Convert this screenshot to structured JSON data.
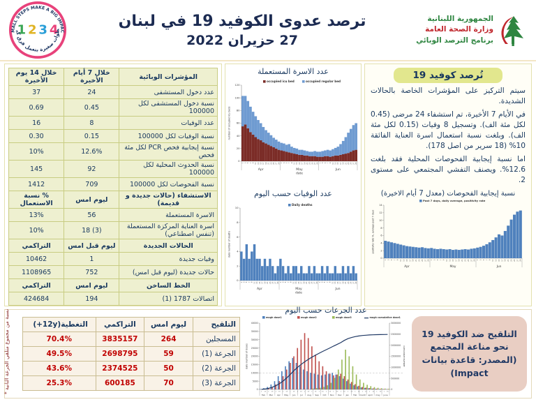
{
  "colors": {
    "accent_navy": "#17375e",
    "value_red": "#c00000",
    "badge_yellow": "#e2e78e",
    "badge_pink": "#e9cec3",
    "excel_blue": "#4f81bd",
    "icu_maroon": "#7b2c27",
    "regular_blue": "#6f9bd1",
    "dose2_red": "#c0504d",
    "dose3_green": "#9bbb59",
    "cumline_navy": "#1f3864"
  },
  "header": {
    "title_line1": "ترصد عدوى الكوفيد 19 في لبنان",
    "title_line2": "27 حزيران 2022",
    "ministry": {
      "line1": "الجمهورية اللبنانية",
      "line2": "وزارة الصحة العامة",
      "line3": "برنامج الترصد الوبائي"
    },
    "stamp": {
      "top": "SMALL STEPS MAKE A BIG IMPACT",
      "n1": "1",
      "n2": "2",
      "n3": "3",
      "n4": "4",
      "bottom": "خطوات صغيرة بتعمل فرق كبير"
    }
  },
  "indicators_table": {
    "col_headers": [
      "المؤشرات الوبائية",
      "خلال 7 أيام الأخيرة",
      "خلال 14 يوم الأخيرة"
    ],
    "rows": [
      {
        "t": "d",
        "a": "عدد دخول المستشفى",
        "b": "24",
        "c": "37"
      },
      {
        "t": "d",
        "a": "نسبة دخول المستشفى لكل 100000",
        "b": "0.45",
        "c": "0.69"
      },
      {
        "t": "d",
        "a": "عدد الوفيات",
        "b": "8",
        "c": "16"
      },
      {
        "t": "d",
        "a": "نسبة الوفيات لكل 100000",
        "b": "0.15",
        "c": "0.30"
      },
      {
        "t": "d",
        "a": "نسبة إيجابية فحص PCR لكل مئة فحص",
        "b": "12.6%",
        "c": "10%"
      },
      {
        "t": "d",
        "a": "نسبة الحدوث المحلية لكل 100000",
        "b": "92",
        "c": "145"
      },
      {
        "t": "d",
        "a": "نسبة الفحوصات لكل 100000",
        "b": "709",
        "c": "1412"
      },
      {
        "t": "h",
        "a": "الاستشفاء (حالات جديدة و قديمة)",
        "b": "ليوم امس",
        "c": "% نسبة الاستعمال"
      },
      {
        "t": "d",
        "a": "الاسرة المستعملة",
        "b": "56",
        "c": "13%"
      },
      {
        "t": "d",
        "a": "اسرة العناية المركزة المستعملة (تنفس اصطناعي)",
        "b": "18 (3)",
        "c": "10%"
      },
      {
        "t": "h",
        "a": "الحالات الجديدة",
        "b": "ليوم قبل امس",
        "c": "التراكمي"
      },
      {
        "t": "d",
        "a": "وفيات جديدة",
        "b": "1",
        "c": "10462"
      },
      {
        "t": "d",
        "a": "حالات جديدة (ليوم قبل امس)",
        "b": "752",
        "c": "1108965"
      },
      {
        "t": "h",
        "a": "الخط الساخن",
        "b": "ليوم امس",
        "c": "التراكمي"
      },
      {
        "t": "d",
        "a": "اتصالات 1787 (1)",
        "b": "194",
        "c": "424684"
      }
    ]
  },
  "surveillance": {
    "badge": "تُرصد كوفيد 19",
    "p1": "سيتم التركيز على المؤشرات الخاصة بالحالات الشديدة.",
    "p2": "في الأيام 7 الأخيرة، تم استشفاء 24 مرضى (0.45 لكل مئة الف). وتسجيل 8 وفيات (0.15 لكل مئة الف). وبلغت نسبة استعمال اسرة العناية الفائقة 10% (18 سرير من اصل 178).",
    "p3": "اما نسبة إيجابية الفحوصات المحلية فقد بلغت 12.6%. ويصنف التفشي المجتمعي على مستوى 2."
  },
  "vaccination_table": {
    "headers": [
      "التلقيح",
      "ليوم امس",
      "التراكمي"
    ],
    "header_coverage_ar": "التغطية",
    "header_coverage_en": "(+12y)",
    "rows": [
      {
        "label": "المسجلين",
        "yesterday": "264",
        "cumulative": "3835157",
        "coverage": "70.4%"
      },
      {
        "label": "الجرعة (1)",
        "yesterday": "59",
        "cumulative": "2698795",
        "coverage": "49.5%"
      },
      {
        "label": "الجرعة (2)",
        "yesterday": "50",
        "cumulative": "2374525",
        "coverage": "43.6%"
      },
      {
        "label": "الجرعة (3)",
        "yesterday": "70",
        "cumulative": "600185",
        "coverage": "25.3%"
      }
    ],
    "note": "* نسبة من مجموع متلقي الجرعة الثانية"
  },
  "vaccination_badge": {
    "text": "التلقيح ضد الكوفيد 19 نحو مناعة المجتمع",
    "source": "(المصدر: قاعدة بيانات Impact)"
  },
  "chart_data": [
    {
      "id": "beds",
      "type": "stacked-bar",
      "title": "عدد الاسرة المستعملة",
      "ylabel": "number of occupied icu beds",
      "xlabel": "date",
      "ylim": [
        0,
        120
      ],
      "yticks": [
        0,
        20,
        40,
        60,
        80,
        100,
        120
      ],
      "months": [
        "Apr",
        "May",
        "Jun"
      ],
      "x_tick_days": "odd days 1-29 of each month",
      "grid": false,
      "legend_position": "top-inside",
      "series": [
        {
          "name": "occupied icu bed",
          "color": "#7b2c27",
          "values": [
            55,
            58,
            52,
            46,
            42,
            38,
            35,
            33,
            30,
            28,
            26,
            24,
            22,
            20,
            18,
            17,
            16,
            15,
            14,
            13,
            12,
            11,
            10,
            10,
            9,
            9,
            8,
            8,
            8,
            7,
            7,
            7,
            8,
            8,
            7,
            8,
            9,
            9,
            10,
            11,
            12,
            13,
            15,
            17,
            18
          ]
        },
        {
          "name": "occupied regular bed",
          "color": "#6f9bd1",
          "values": [
            48,
            45,
            43,
            40,
            36,
            33,
            30,
            27,
            24,
            21,
            19,
            17,
            15,
            14,
            13,
            12,
            12,
            11,
            13,
            10,
            9,
            9,
            8,
            8,
            8,
            7,
            7,
            7,
            8,
            8,
            8,
            9,
            9,
            10,
            10,
            11,
            12,
            14,
            17,
            21,
            26,
            32,
            36,
            40,
            42
          ]
        }
      ]
    },
    {
      "id": "deaths",
      "type": "bar",
      "title": "عدد الوفيات حسب اليوم",
      "ylabel": "daily number of deaths",
      "xlabel": "date",
      "ylim": [
        0,
        10
      ],
      "yticks": [
        0,
        2,
        4,
        6,
        8,
        10
      ],
      "months": [
        "Apr",
        "May",
        "Jun"
      ],
      "x_tick_days": "odd days 1-29 of each month",
      "grid": false,
      "legend_position": "top-inside",
      "legend": [
        {
          "label": "Daily deaths",
          "color": "#4f81bd"
        }
      ],
      "values": [
        4,
        3,
        5,
        3,
        4,
        5,
        3,
        3,
        2,
        3,
        2,
        3,
        2,
        1,
        2,
        3,
        2,
        1,
        2,
        1,
        2,
        2,
        1,
        2,
        1,
        1,
        2,
        1,
        2,
        1,
        1,
        2,
        1,
        2,
        1,
        1,
        2,
        1,
        1,
        2,
        1,
        2,
        1,
        2,
        1
      ]
    },
    {
      "id": "positivity",
      "type": "bar",
      "title": "نسبة إيجابية الفحوصات (معدل 7 أيام الاخيرة)",
      "ylabel": "positivity rate %, average past 7 days",
      "xlabel": "",
      "ylim": [
        0,
        14
      ],
      "yticks": [
        0,
        2,
        4,
        6,
        8,
        10,
        12,
        14
      ],
      "months": [
        "Apr",
        "May",
        "Jun"
      ],
      "x_tick_days": "odd days 1-29 of each month",
      "grid": false,
      "legend_position": "top-inside",
      "legend": [
        {
          "label": "Past 7 days, daily average, positivity rate",
          "color": "#4f81bd"
        }
      ],
      "values": [
        4.6,
        4.4,
        4.2,
        4.0,
        3.8,
        3.6,
        3.4,
        3.2,
        3.1,
        3.0,
        2.9,
        2.8,
        2.9,
        2.7,
        2.6,
        2.7,
        2.5,
        2.4,
        2.5,
        2.4,
        2.3,
        2.4,
        2.2,
        2.3,
        2.2,
        2.3,
        2.4,
        2.3,
        2.5,
        2.6,
        2.8,
        3.0,
        3.3,
        3.7,
        4.2,
        4.8,
        5.5,
        6.3,
        6.0,
        7.2,
        8.6,
        10.2,
        11.5,
        12.3,
        12.6
      ]
    },
    {
      "id": "doses",
      "type": "grouped-bar-line",
      "title": "عدد الجرعات حسب اليوم",
      "ylabel": "daily number of doses",
      "ylabel_right": "cumulative number",
      "xlabel": "",
      "ylim": [
        0,
        40000
      ],
      "yticks": [
        0,
        5000,
        10000,
        15000,
        20000,
        25000,
        30000,
        35000,
        40000
      ],
      "ylim_right": [
        0,
        3000000
      ],
      "yticks_right": [
        0,
        500000,
        1000000,
        1500000,
        2000000,
        2500000,
        3000000
      ],
      "refline": 10000,
      "grid": false,
      "legend_position": "top",
      "months": [
        "Feb",
        "Mar",
        "Apr",
        "May",
        "Jun",
        "Jul",
        "Aug",
        "Sep",
        "Oct",
        "Nov",
        "Dec",
        "Jan",
        "Feb",
        "march",
        "april",
        "may",
        "june"
      ],
      "series": [
        {
          "name": "mogh dose1",
          "color": "#4f81bd",
          "values": [
            300,
            800,
            1500,
            3000,
            5000,
            8000,
            11000,
            14000,
            17000,
            19000,
            16000,
            14000,
            12000,
            11000,
            10000,
            9500,
            9000,
            8500,
            9000,
            9500,
            10000,
            9000,
            8000,
            6500,
            5000,
            3500,
            2500,
            1800,
            1200,
            900,
            700,
            500,
            400,
            300,
            250,
            200
          ]
        },
        {
          "name": "mogh dose2",
          "color": "#c0504d",
          "values": [
            0,
            200,
            600,
            1500,
            3000,
            5000,
            8000,
            12000,
            16000,
            20000,
            25000,
            30000,
            34000,
            31000,
            26000,
            21000,
            17000,
            14000,
            11000,
            9500,
            8500,
            9000,
            9500,
            8000,
            6000,
            4500,
            3200,
            2200,
            1500,
            1100,
            800,
            600,
            450,
            350,
            280,
            220
          ]
        },
        {
          "name": "mogh dose3",
          "color": "#9bbb59",
          "values": [
            0,
            0,
            0,
            0,
            0,
            0,
            0,
            0,
            0,
            0,
            0,
            0,
            0,
            0,
            500,
            800,
            1000,
            1500,
            2500,
            4000,
            7000,
            12000,
            18000,
            24000,
            20000,
            14000,
            9000,
            6000,
            4000,
            2800,
            2000,
            1400,
            1000,
            700,
            500,
            400
          ]
        }
      ],
      "line": {
        "name": "mogh cumulative dose1",
        "color": "#1f3864",
        "values": [
          5000,
          20000,
          50000,
          100000,
          170000,
          260000,
          380000,
          520000,
          680000,
          850000,
          1000000,
          1130000,
          1250000,
          1360000,
          1460000,
          1550000,
          1640000,
          1720000,
          1800000,
          1880000,
          1960000,
          2040000,
          2120000,
          2220000,
          2300000,
          2350000,
          2390000,
          2420000,
          2440000,
          2455000,
          2465000,
          2472000,
          2478000,
          2482000,
          2486000,
          2490000
        ]
      }
    }
  ]
}
